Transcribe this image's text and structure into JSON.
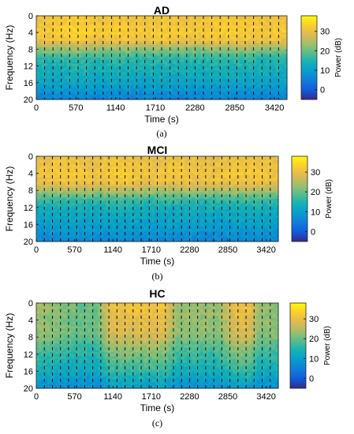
{
  "chart_data": [
    {
      "type": "heatmap",
      "panel": "(a)",
      "title": "AD",
      "xlabel": "Time (s)",
      "ylabel": "Frequency (Hz)",
      "colorbar_label": "Power (dB)",
      "x_ticks": [
        0,
        570,
        1140,
        1710,
        2280,
        2850,
        3420
      ],
      "y_ticks": [
        0,
        4,
        8,
        12,
        16,
        20
      ],
      "colorbar_ticks": [
        0,
        10,
        20,
        30
      ],
      "xlim": [
        0,
        3600
      ],
      "ylim": [
        0,
        20
      ],
      "y_reversed": true,
      "clim": [
        -5,
        38
      ],
      "colormap": "parula",
      "dashed_markers_every_s": 120,
      "band_profile_db": [
        {
          "freq_hz": 0,
          "power_db": 30
        },
        {
          "freq_hz": 2,
          "power_db": 31
        },
        {
          "freq_hz": 4,
          "power_db": 32
        },
        {
          "freq_hz": 6,
          "power_db": 30
        },
        {
          "freq_hz": 8,
          "power_db": 22
        },
        {
          "freq_hz": 10,
          "power_db": 16
        },
        {
          "freq_hz": 12,
          "power_db": 14
        },
        {
          "freq_hz": 16,
          "power_db": 11
        },
        {
          "freq_hz": 20,
          "power_db": 5
        }
      ],
      "time_modulation_db": [
        {
          "t_s": 0,
          "delta": 0
        },
        {
          "t_s": 300,
          "delta": 1
        },
        {
          "t_s": 600,
          "delta": 2
        },
        {
          "t_s": 900,
          "delta": 0
        },
        {
          "t_s": 1200,
          "delta": 1
        },
        {
          "t_s": 1500,
          "delta": 0
        },
        {
          "t_s": 1800,
          "delta": 1
        },
        {
          "t_s": 2100,
          "delta": 0
        },
        {
          "t_s": 2400,
          "delta": 0
        },
        {
          "t_s": 2700,
          "delta": 1
        },
        {
          "t_s": 3000,
          "delta": 1
        },
        {
          "t_s": 3300,
          "delta": 0
        },
        {
          "t_s": 3600,
          "delta": 0
        }
      ]
    },
    {
      "type": "heatmap",
      "panel": "(b)",
      "title": "MCI",
      "xlabel": "Time (s)",
      "ylabel": "Frequency (Hz)",
      "colorbar_label": "Power (dB)",
      "x_ticks": [
        0,
        570,
        1140,
        1710,
        2280,
        2850,
        3420
      ],
      "y_ticks": [
        0,
        4,
        8,
        12,
        16,
        20
      ],
      "colorbar_ticks": [
        0,
        10,
        20,
        30
      ],
      "xlim": [
        0,
        3600
      ],
      "ylim": [
        0,
        20
      ],
      "y_reversed": true,
      "clim": [
        -5,
        38
      ],
      "colormap": "parula",
      "dashed_markers_every_s": 120,
      "band_profile_db": [
        {
          "freq_hz": 0,
          "power_db": 29
        },
        {
          "freq_hz": 2,
          "power_db": 30
        },
        {
          "freq_hz": 4,
          "power_db": 31
        },
        {
          "freq_hz": 6,
          "power_db": 30
        },
        {
          "freq_hz": 8,
          "power_db": 24
        },
        {
          "freq_hz": 10,
          "power_db": 17
        },
        {
          "freq_hz": 12,
          "power_db": 13
        },
        {
          "freq_hz": 16,
          "power_db": 10
        },
        {
          "freq_hz": 20,
          "power_db": 6
        }
      ],
      "time_modulation_db": [
        {
          "t_s": 0,
          "delta": 0
        },
        {
          "t_s": 300,
          "delta": 1
        },
        {
          "t_s": 600,
          "delta": 1
        },
        {
          "t_s": 900,
          "delta": 0
        },
        {
          "t_s": 1200,
          "delta": 2
        },
        {
          "t_s": 1500,
          "delta": 1
        },
        {
          "t_s": 1800,
          "delta": 0
        },
        {
          "t_s": 2100,
          "delta": 1
        },
        {
          "t_s": 2400,
          "delta": 0
        },
        {
          "t_s": 2700,
          "delta": 0
        },
        {
          "t_s": 3000,
          "delta": 1
        },
        {
          "t_s": 3300,
          "delta": 1
        },
        {
          "t_s": 3600,
          "delta": 0
        }
      ]
    },
    {
      "type": "heatmap",
      "panel": "(c)",
      "title": "HC",
      "xlabel": "Time (s)",
      "ylabel": "Frequency (Hz)",
      "colorbar_label": "Power (dB)",
      "x_ticks": [
        0,
        570,
        1140,
        1710,
        2280,
        2850,
        3420
      ],
      "y_ticks": [
        0,
        4,
        8,
        12,
        16,
        20
      ],
      "colorbar_ticks": [
        0,
        10,
        20,
        30
      ],
      "xlim": [
        0,
        3600
      ],
      "ylim": [
        0,
        20
      ],
      "y_reversed": true,
      "clim": [
        -5,
        38
      ],
      "colormap": "parula",
      "dashed_markers_every_s": 120,
      "band_profile_db": [
        {
          "freq_hz": 0,
          "power_db": 25
        },
        {
          "freq_hz": 2,
          "power_db": 25
        },
        {
          "freq_hz": 4,
          "power_db": 24
        },
        {
          "freq_hz": 6,
          "power_db": 24
        },
        {
          "freq_hz": 8,
          "power_db": 23
        },
        {
          "freq_hz": 10,
          "power_db": 20
        },
        {
          "freq_hz": 12,
          "power_db": 18
        },
        {
          "freq_hz": 16,
          "power_db": 14
        },
        {
          "freq_hz": 20,
          "power_db": 8
        }
      ],
      "time_modulation_db": [
        {
          "t_s": 0,
          "delta": -1
        },
        {
          "t_s": 300,
          "delta": -3
        },
        {
          "t_s": 600,
          "delta": -5
        },
        {
          "t_s": 900,
          "delta": -5
        },
        {
          "t_s": 1100,
          "delta": 5
        },
        {
          "t_s": 1500,
          "delta": 6
        },
        {
          "t_s": 1900,
          "delta": 6
        },
        {
          "t_s": 2100,
          "delta": -2
        },
        {
          "t_s": 2400,
          "delta": -2
        },
        {
          "t_s": 2700,
          "delta": -2
        },
        {
          "t_s": 3000,
          "delta": 6
        },
        {
          "t_s": 3200,
          "delta": 5
        },
        {
          "t_s": 3300,
          "delta": -2
        },
        {
          "t_s": 3600,
          "delta": -3
        }
      ]
    }
  ]
}
